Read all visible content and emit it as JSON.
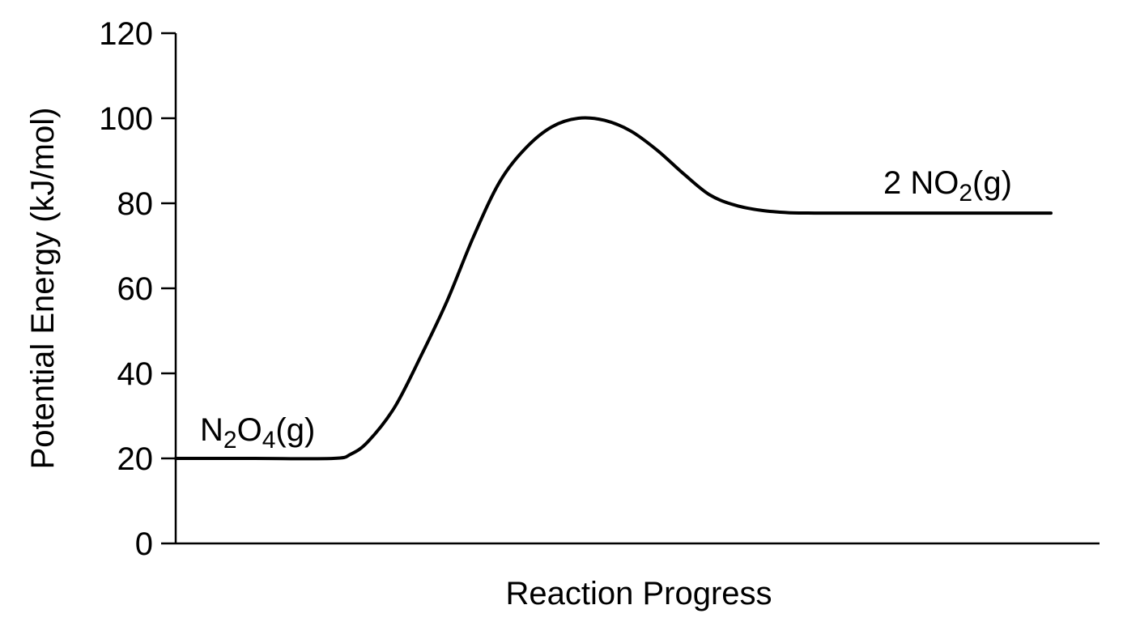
{
  "chart_data": {
    "type": "line",
    "title": "",
    "xlabel": "Reaction Progress",
    "ylabel": "Potential Energy (kJ/mol)",
    "ylim": [
      0,
      120
    ],
    "yticks": [
      0,
      20,
      40,
      60,
      80,
      100,
      120
    ],
    "xlim": [
      0,
      1
    ],
    "grid": false,
    "legend": "none",
    "series": [
      {
        "x": [
          0.0,
          0.09,
          0.18,
          0.2,
          0.22,
          0.25,
          0.28,
          0.31,
          0.34,
          0.37,
          0.4,
          0.43,
          0.46,
          0.49,
          0.52,
          0.55,
          0.58,
          0.61,
          0.64,
          0.67,
          0.7,
          0.73,
          0.76,
          0.79,
          0.8,
          0.85,
          0.9,
          0.95,
          1.0
        ],
        "y": [
          20,
          20,
          20,
          21,
          24,
          32,
          44,
          57,
          72,
          85,
          93,
          98,
          100,
          99.5,
          97,
          92.5,
          87,
          82,
          79.5,
          78.3,
          77.8,
          77.7,
          77.7,
          77.7,
          77.7,
          77.7,
          77.7,
          77.7,
          77.7
        ]
      }
    ],
    "annotations": [
      {
        "label": "N2O4(g)",
        "base1": "N",
        "sub1": "2",
        "base2": "O",
        "sub2": "4",
        "tail": "(g)"
      },
      {
        "label": "2 NO2(g)",
        "base1": "2 NO",
        "sub1": "2",
        "tail": "(g)"
      }
    ]
  }
}
